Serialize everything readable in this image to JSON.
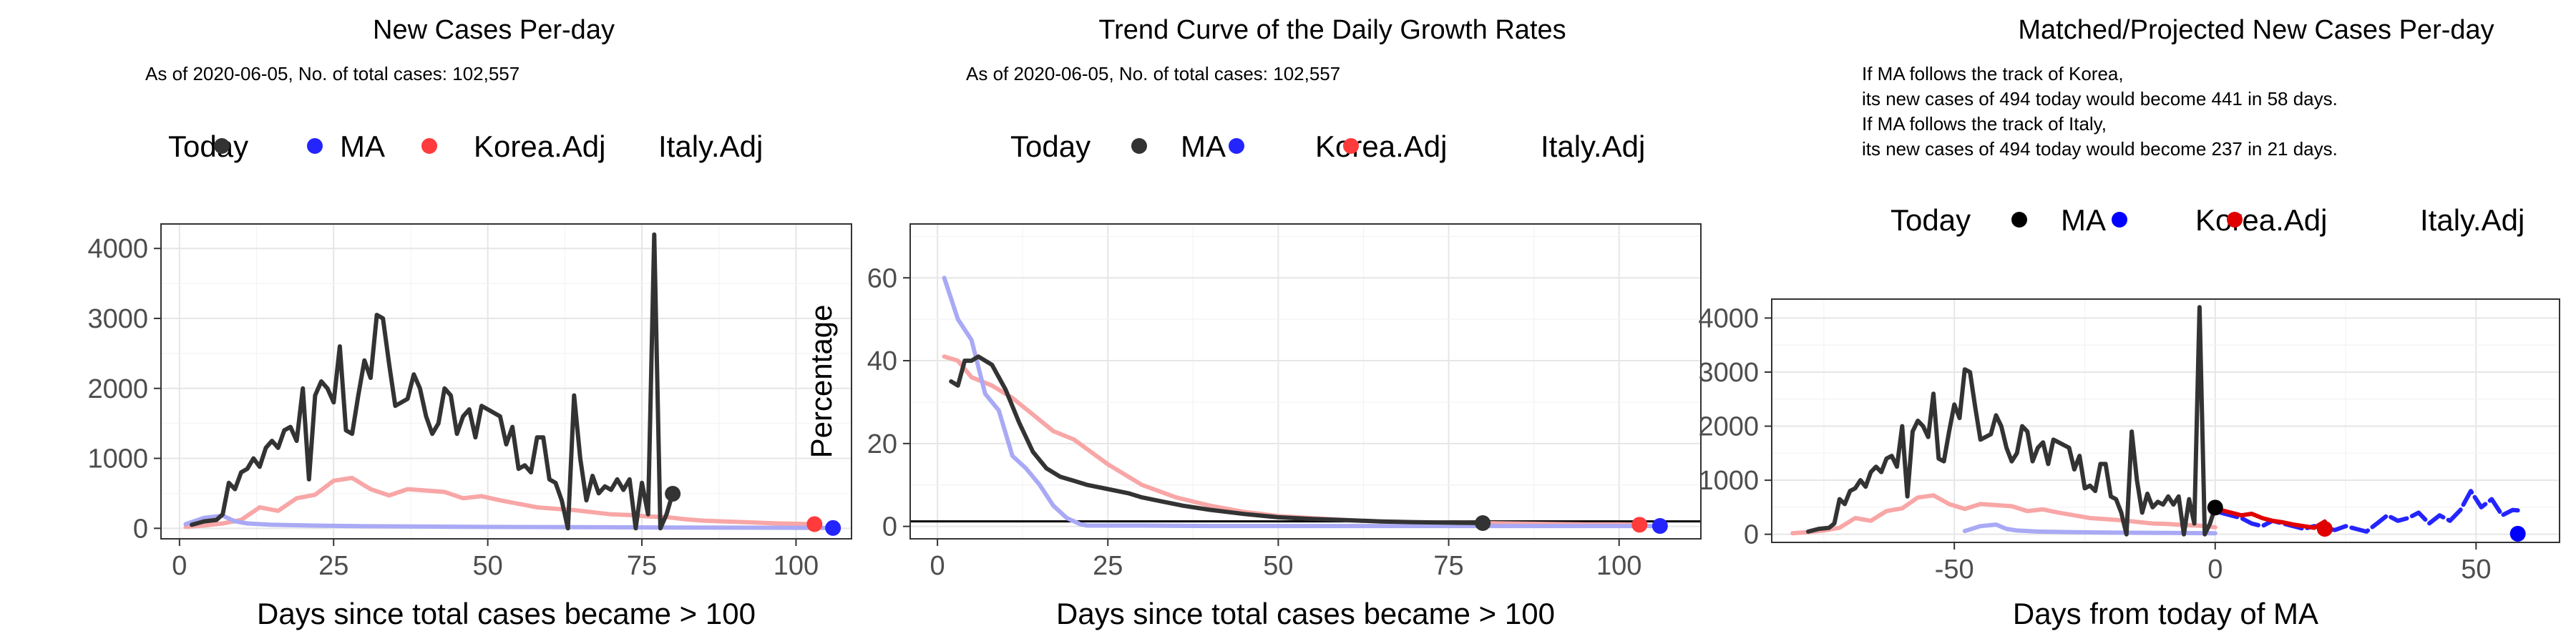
{
  "chart_data": [
    {
      "type": "line",
      "title": "New Cases Per-day",
      "subtitle": "As of 2020-06-05, No. of total cases: 102,557",
      "xlabel": "Days since total cases became > 100",
      "ylabel": "",
      "xlim": [
        -3,
        109
      ],
      "ylim": [
        -150,
        4350
      ],
      "xticks": [
        0,
        25,
        50,
        75,
        100
      ],
      "yticks": [
        0,
        1000,
        2000,
        3000,
        4000
      ],
      "grid": true,
      "legend": {
        "position": "top",
        "title": "Today",
        "entries": [
          "MA",
          "Korea.Adj",
          "Italy.Adj"
        ]
      },
      "series": [
        {
          "name": "Italy.Adj",
          "color": "#f8a6a6",
          "x": [
            1,
            4,
            7,
            10,
            13,
            16,
            19,
            22,
            25,
            28,
            31,
            34,
            37,
            40,
            43,
            46,
            49,
            52,
            55,
            58,
            61,
            64,
            67,
            70,
            73,
            76,
            79,
            82,
            85,
            88,
            91,
            94,
            97,
            100,
            103
          ],
          "values": [
            20,
            40,
            70,
            120,
            300,
            250,
            430,
            480,
            680,
            720,
            560,
            470,
            560,
            540,
            520,
            430,
            460,
            400,
            350,
            300,
            280,
            260,
            230,
            200,
            190,
            170,
            160,
            130,
            110,
            100,
            90,
            80,
            70,
            65,
            60
          ]
        },
        {
          "name": "Korea.Adj",
          "color": "#a9a9f5",
          "x": [
            1,
            4,
            7,
            9,
            11,
            13,
            15,
            18,
            21,
            25,
            30,
            40,
            50,
            60,
            70,
            80,
            90,
            100,
            106
          ],
          "values": [
            60,
            150,
            180,
            100,
            70,
            60,
            50,
            45,
            40,
            35,
            30,
            25,
            20,
            18,
            15,
            12,
            10,
            8,
            5
          ]
        },
        {
          "name": "MA",
          "color": "#333333",
          "x": [
            2,
            4,
            6,
            7,
            8,
            9,
            10,
            11,
            12,
            13,
            14,
            15,
            16,
            17,
            18,
            19,
            20,
            21,
            22,
            23,
            24,
            25,
            26,
            27,
            28,
            29,
            30,
            31,
            32,
            33,
            34,
            35,
            36,
            37,
            38,
            39,
            40,
            41,
            42,
            43,
            44,
            45,
            46,
            47,
            48,
            49,
            50,
            51,
            52,
            53,
            54,
            55,
            56,
            57,
            58,
            59,
            60,
            61,
            62,
            63,
            64,
            65,
            66,
            67,
            68,
            69,
            70,
            71,
            72,
            73,
            74,
            75,
            76,
            77,
            78,
            79,
            80
          ],
          "values": [
            50,
            100,
            120,
            200,
            650,
            560,
            800,
            850,
            1000,
            880,
            1150,
            1250,
            1150,
            1400,
            1450,
            1250,
            2000,
            700,
            1900,
            2100,
            2000,
            1800,
            2600,
            1400,
            1350,
            1900,
            2400,
            2150,
            3050,
            3000,
            2350,
            1750,
            1800,
            1850,
            2200,
            2000,
            1600,
            1350,
            1500,
            2000,
            1900,
            1350,
            1600,
            1700,
            1300,
            1750,
            1700,
            1650,
            1600,
            1200,
            1450,
            850,
            900,
            800,
            1300,
            1300,
            700,
            650,
            400,
            0,
            1900,
            1000,
            400,
            750,
            500,
            600,
            550,
            700,
            550,
            700,
            0,
            650,
            200,
            4200,
            0,
            200,
            500
          ]
        }
      ],
      "today_points": [
        {
          "name": "MA",
          "x": 80,
          "value": 494,
          "color": "#333333"
        },
        {
          "name": "Italy.Adj",
          "x": 103,
          "value": 60,
          "color": "#ff3b3b"
        },
        {
          "name": "Korea.Adj",
          "x": 106,
          "value": 5,
          "color": "#2424ff"
        }
      ]
    },
    {
      "type": "line",
      "title": "Trend Curve of the Daily Growth Rates",
      "subtitle": "As of 2020-06-05, No. of total cases: 102,557",
      "xlabel": "Days since total cases became > 100",
      "ylabel": "Percentage",
      "xlim": [
        -4,
        112
      ],
      "ylim": [
        -3,
        73
      ],
      "xticks": [
        0,
        25,
        50,
        75,
        100
      ],
      "yticks": [
        0,
        20,
        40,
        60
      ],
      "hline": 1.2,
      "grid": true,
      "legend": {
        "position": "top",
        "title": "Today",
        "entries": [
          "MA",
          "Korea.Adj",
          "Italy.Adj"
        ]
      },
      "series": [
        {
          "name": "Italy.Adj",
          "color": "#f8a6a6",
          "x": [
            1,
            3,
            5,
            8,
            11,
            14,
            17,
            20,
            25,
            30,
            35,
            40,
            45,
            50,
            55,
            60,
            65,
            70,
            75,
            80,
            85,
            90,
            95,
            100,
            103
          ],
          "values": [
            41,
            40,
            36,
            34,
            31,
            27,
            23,
            21,
            15,
            10,
            7,
            5,
            3.5,
            2.5,
            2,
            1.5,
            1.2,
            1,
            0.9,
            0.8,
            0.7,
            0.6,
            0.5,
            0.5,
            0.4
          ]
        },
        {
          "name": "Korea.Adj",
          "color": "#a9a9f5",
          "x": [
            1,
            3,
            5,
            7,
            9,
            11,
            13,
            15,
            17,
            19,
            21,
            22,
            30,
            40,
            50,
            60,
            70,
            80,
            90,
            100,
            106
          ],
          "values": [
            60,
            50,
            45,
            32,
            28,
            17,
            14,
            10,
            5,
            2,
            0.5,
            0.2,
            0.2,
            0.1,
            0.1,
            0.1,
            0.1,
            0.1,
            0.1,
            0.1,
            0.1
          ]
        },
        {
          "name": "MA",
          "color": "#333333",
          "x": [
            2,
            3,
            4,
            5,
            6,
            7,
            8,
            10,
            12,
            14,
            16,
            18,
            20,
            22,
            25,
            28,
            30,
            33,
            36,
            40,
            45,
            50,
            55,
            60,
            65,
            70,
            75,
            80
          ],
          "values": [
            35,
            34,
            40,
            40,
            41,
            40,
            39,
            33,
            25,
            18,
            14,
            12,
            11,
            10,
            9,
            8,
            7,
            6,
            5,
            4,
            3,
            2.2,
            1.8,
            1.5,
            1.2,
            1,
            0.9,
            0.8
          ]
        }
      ],
      "today_points": [
        {
          "name": "MA",
          "x": 80,
          "value": 0.8,
          "color": "#333333"
        },
        {
          "name": "Italy.Adj",
          "x": 103,
          "value": 0.4,
          "color": "#ff3b3b"
        },
        {
          "name": "Korea.Adj",
          "x": 106,
          "value": 0.1,
          "color": "#2424ff"
        }
      ]
    },
    {
      "type": "line",
      "title": "Matched/Projected New Cases Per-day",
      "notes": [
        "If MA follows the track of Korea,",
        "its new cases of 494 today would become 441 in 58 days.",
        "If MA follows the track of Italy,",
        "its new cases of 494 today would become 237 in 21 days."
      ],
      "xlabel": "Days from today of MA",
      "ylabel": "",
      "xlim": [
        -85,
        66
      ],
      "ylim": [
        -150,
        4350
      ],
      "xticks": [
        -50,
        0,
        50
      ],
      "yticks": [
        0,
        1000,
        2000,
        3000,
        4000
      ],
      "grid": true,
      "legend": {
        "position": "top",
        "title": "Today",
        "entries": [
          "MA",
          "Korea.Adj",
          "Italy.Adj"
        ]
      },
      "series": [
        {
          "name": "Italy.Adj past",
          "color": "#f8a6a6",
          "x": [
            -81,
            -78,
            -75,
            -72,
            -69,
            -66,
            -63,
            -60,
            -57,
            -54,
            -51,
            -48,
            -45,
            -42,
            -39,
            -36,
            -33,
            -30,
            -27,
            -24,
            -21,
            -18,
            -15,
            -12,
            -9,
            -6,
            -3,
            0
          ],
          "values": [
            20,
            40,
            70,
            120,
            300,
            250,
            430,
            480,
            680,
            720,
            560,
            470,
            560,
            540,
            520,
            430,
            460,
            400,
            350,
            300,
            280,
            260,
            230,
            200,
            190,
            170,
            160,
            130
          ]
        },
        {
          "name": "Korea.Adj past",
          "color": "#a9a9f5",
          "x": [
            -48,
            -45,
            -42,
            -40,
            -38,
            -36,
            -34,
            -31,
            -28,
            -24,
            -19,
            -9,
            0
          ],
          "values": [
            60,
            150,
            180,
            100,
            70,
            60,
            50,
            45,
            40,
            35,
            30,
            25,
            20
          ]
        },
        {
          "name": "MA past",
          "color": "#333333",
          "x": [
            -78,
            -76,
            -74,
            -73,
            -72,
            -71,
            -70,
            -69,
            -68,
            -67,
            -66,
            -65,
            -64,
            -63,
            -62,
            -61,
            -60,
            -59,
            -58,
            -57,
            -56,
            -55,
            -54,
            -53,
            -52,
            -51,
            -50,
            -49,
            -48,
            -47,
            -46,
            -45,
            -44,
            -43,
            -42,
            -41,
            -40,
            -39,
            -38,
            -37,
            -36,
            -35,
            -34,
            -33,
            -32,
            -31,
            -30,
            -29,
            -28,
            -27,
            -26,
            -25,
            -24,
            -23,
            -22,
            -21,
            -20,
            -19,
            -18,
            -17,
            -16,
            -15,
            -14,
            -13,
            -12,
            -11,
            -10,
            -9,
            -8,
            -7,
            -6,
            -5,
            -4,
            -3,
            -2,
            -1,
            0
          ],
          "values": [
            50,
            100,
            120,
            200,
            650,
            560,
            800,
            850,
            1000,
            880,
            1150,
            1250,
            1150,
            1400,
            1450,
            1250,
            2000,
            700,
            1900,
            2100,
            2000,
            1800,
            2600,
            1400,
            1350,
            1900,
            2400,
            2150,
            3050,
            3000,
            2350,
            1750,
            1800,
            1850,
            2200,
            2000,
            1600,
            1350,
            1500,
            2000,
            1900,
            1350,
            1600,
            1700,
            1300,
            1750,
            1700,
            1650,
            1600,
            1200,
            1450,
            850,
            900,
            800,
            1300,
            1300,
            700,
            650,
            400,
            0,
            1900,
            1000,
            400,
            750,
            500,
            600,
            550,
            700,
            550,
            700,
            0,
            650,
            200,
            4200,
            0,
            200,
            500
          ]
        },
        {
          "name": "Korea.Adj projected",
          "color": "#2424ff",
          "x": [
            1,
            3,
            5,
            7,
            9,
            11,
            13,
            15,
            17,
            19,
            21,
            23,
            25,
            27,
            29,
            31,
            33,
            35,
            37,
            39,
            41,
            43,
            45,
            47,
            49,
            51,
            53,
            55,
            57,
            58
          ],
          "values": [
            400,
            350,
            300,
            200,
            150,
            250,
            200,
            150,
            100,
            150,
            100,
            80,
            150,
            100,
            50,
            200,
            350,
            250,
            300,
            400,
            200,
            350,
            250,
            450,
            800,
            500,
            650,
            350,
            450,
            441
          ],
          "dashed": true
        },
        {
          "name": "Italy.Adj projected",
          "color": "#e00000",
          "x": [
            1,
            3,
            5,
            7,
            9,
            11,
            13,
            15,
            17,
            19,
            21
          ],
          "values": [
            450,
            400,
            350,
            380,
            300,
            250,
            220,
            180,
            150,
            120,
            237
          ]
        }
      ],
      "today_points": [
        {
          "name": "MA",
          "x": 0,
          "value": 494,
          "color": "#000000"
        },
        {
          "name": "Italy.Adj",
          "x": 21,
          "value": 100,
          "color": "#e00000"
        },
        {
          "name": "Korea.Adj",
          "x": 58,
          "value": 10,
          "color": "#0000ff"
        }
      ]
    }
  ]
}
